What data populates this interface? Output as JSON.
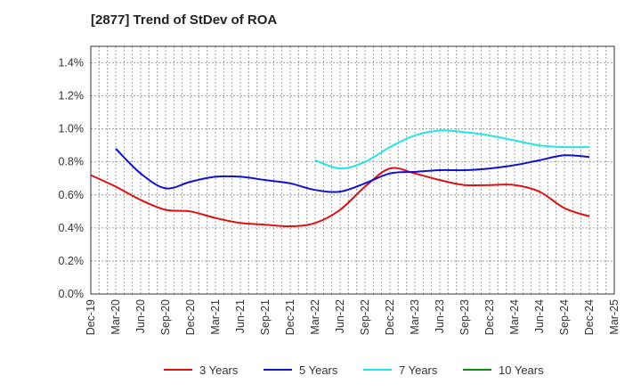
{
  "chart_data": {
    "type": "line",
    "title": "[2877]  Trend of StDev of ROA",
    "xlabel": "",
    "ylabel": "",
    "ylim": [
      0,
      1.5
    ],
    "yticks": [
      "0.0%",
      "0.2%",
      "0.4%",
      "0.6%",
      "0.8%",
      "1.0%",
      "1.2%",
      "1.4%"
    ],
    "ytick_values": [
      0,
      0.2,
      0.4,
      0.6,
      0.8,
      1.0,
      1.2,
      1.4
    ],
    "categories": [
      "Dec-19",
      "Mar-20",
      "Jun-20",
      "Sep-20",
      "Dec-20",
      "Mar-21",
      "Jun-21",
      "Sep-21",
      "Dec-21",
      "Mar-22",
      "Jun-22",
      "Sep-22",
      "Dec-22",
      "Mar-23",
      "Jun-23",
      "Sep-23",
      "Dec-23",
      "Mar-24",
      "Jun-24",
      "Sep-24",
      "Dec-24",
      "Mar-25"
    ],
    "grid": true,
    "legend_position": "bottom",
    "series": [
      {
        "name": "3 Years",
        "color": "#dd1111",
        "values": [
          0.72,
          0.65,
          0.57,
          0.51,
          0.5,
          0.46,
          0.43,
          0.42,
          0.41,
          0.43,
          0.51,
          0.65,
          0.76,
          0.73,
          0.69,
          0.66,
          0.66,
          0.66,
          0.62,
          0.52,
          0.47,
          null
        ]
      },
      {
        "name": "5 Years",
        "color": "#1111cc",
        "values": [
          null,
          0.88,
          0.73,
          0.64,
          0.68,
          0.71,
          0.71,
          0.69,
          0.67,
          0.63,
          0.62,
          0.67,
          0.73,
          0.74,
          0.75,
          0.75,
          0.76,
          0.78,
          0.81,
          0.84,
          0.83,
          null
        ]
      },
      {
        "name": "7 Years",
        "color": "#22e5e5",
        "values": [
          null,
          null,
          null,
          null,
          null,
          null,
          null,
          null,
          null,
          0.81,
          0.76,
          0.8,
          0.89,
          0.96,
          0.99,
          0.98,
          0.96,
          0.93,
          0.9,
          0.89,
          0.89,
          null
        ]
      },
      {
        "name": "10 Years",
        "color": "#118811",
        "values": [
          null,
          null,
          null,
          null,
          null,
          null,
          null,
          null,
          null,
          null,
          null,
          null,
          null,
          null,
          null,
          null,
          null,
          null,
          null,
          null,
          null,
          null
        ]
      }
    ]
  }
}
